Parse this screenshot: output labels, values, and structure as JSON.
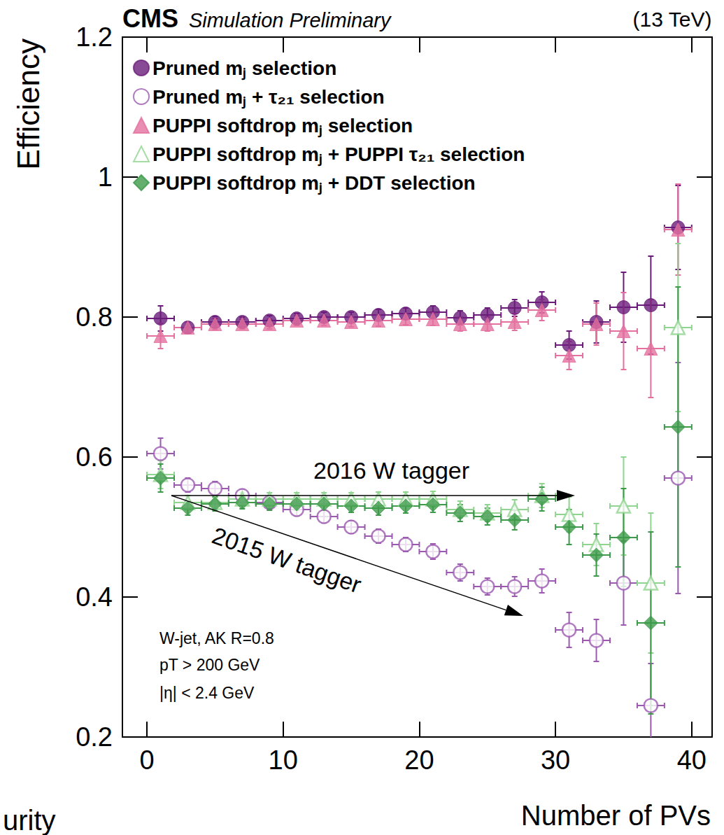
{
  "chart_data": {
    "type": "scatter",
    "title": "CMS",
    "subtitle": "Simulation Preliminary",
    "x_label": "Number of PVs",
    "y_label": "Efficiency",
    "annotations": [
      "(13 TeV)",
      "W-jet, AK R=0.8",
      "pT > 200 GeV",
      "|η| < 2.4 GeV",
      "2016 W tagger",
      "2015 W tagger",
      "urity"
    ],
    "legend": "upper left",
    "x": [
      1,
      3,
      5,
      7,
      9,
      11,
      13,
      15,
      17,
      19,
      21,
      23,
      25,
      27,
      29,
      31,
      33,
      35,
      37,
      39
    ],
    "x_err": [
      1,
      1,
      1,
      1,
      1,
      1,
      1,
      1,
      1,
      1,
      1,
      1,
      1,
      1,
      1,
      1,
      1,
      1,
      1,
      1
    ],
    "xlim": [
      -1.8,
      41.5
    ],
    "xticks": [
      0,
      10,
      20,
      30,
      40
    ],
    "ylim": [
      0.2,
      1.2
    ],
    "yticks": [
      0.2,
      0.4,
      0.6,
      0.8,
      1,
      1.2
    ],
    "series": [
      {
        "name": "Pruned mⱼ selection",
        "color": "#6a1b7a",
        "marker": "circle",
        "values": [
          0.798,
          0.785,
          0.793,
          0.793,
          0.795,
          0.798,
          0.8,
          0.8,
          0.803,
          0.805,
          0.807,
          0.799,
          0.803,
          0.813,
          0.821,
          0.76,
          0.793,
          0.814,
          0.817,
          0.928
        ],
        "errors": [
          0.018,
          0.008,
          0.008,
          0.007,
          0.007,
          0.007,
          0.007,
          0.007,
          0.008,
          0.008,
          0.009,
          0.01,
          0.01,
          0.012,
          0.015,
          0.02,
          0.03,
          0.05,
          0.07,
          0.06
        ]
      },
      {
        "name": "Pruned mⱼ + τ₂₁ selection",
        "color": "#9b59b0",
        "marker": "circle-open",
        "values": [
          0.605,
          0.56,
          0.555,
          0.545,
          0.535,
          0.525,
          0.515,
          0.5,
          0.487,
          0.475,
          0.465,
          0.435,
          0.415,
          0.415,
          0.423,
          0.353,
          0.338,
          0.42,
          0.245,
          0.57
        ],
        "errors": [
          0.022,
          0.01,
          0.01,
          0.009,
          0.009,
          0.009,
          0.009,
          0.009,
          0.01,
          0.01,
          0.011,
          0.012,
          0.012,
          0.014,
          0.017,
          0.025,
          0.03,
          0.06,
          0.06,
          0.165
        ]
      },
      {
        "name": "PUPPI softdrop mⱼ selection",
        "color": "#e3709f",
        "marker": "triangle",
        "values": [
          0.773,
          0.785,
          0.79,
          0.79,
          0.79,
          0.795,
          0.795,
          0.793,
          0.795,
          0.797,
          0.797,
          0.79,
          0.79,
          0.793,
          0.81,
          0.745,
          0.79,
          0.78,
          0.755,
          0.925
        ],
        "errors": [
          0.018,
          0.008,
          0.008,
          0.007,
          0.007,
          0.007,
          0.007,
          0.007,
          0.008,
          0.008,
          0.009,
          0.01,
          0.01,
          0.012,
          0.015,
          0.02,
          0.03,
          0.055,
          0.07,
          0.065
        ]
      },
      {
        "name": "PUPPI softdrop mⱼ + PUPPI τ₂₁ selection",
        "color": "#8fd48f",
        "marker": "triangle-open",
        "values": [
          0.575,
          0.535,
          0.535,
          0.54,
          0.54,
          0.54,
          0.54,
          0.54,
          0.54,
          0.54,
          0.54,
          0.525,
          0.52,
          0.525,
          0.545,
          0.518,
          0.475,
          0.53,
          0.42,
          0.785
        ],
        "errors": [
          0.02,
          0.01,
          0.01,
          0.009,
          0.009,
          0.009,
          0.009,
          0.009,
          0.01,
          0.01,
          0.011,
          0.012,
          0.012,
          0.014,
          0.017,
          0.025,
          0.03,
          0.07,
          0.1,
          0.12
        ]
      },
      {
        "name": "PUPPI softdrop mⱼ + DDT selection",
        "color": "#3d9a4a",
        "marker": "diamond",
        "values": [
          0.57,
          0.527,
          0.533,
          0.535,
          0.533,
          0.533,
          0.533,
          0.53,
          0.527,
          0.53,
          0.532,
          0.52,
          0.515,
          0.51,
          0.54,
          0.5,
          0.46,
          0.485,
          0.363,
          0.643
        ],
        "errors": [
          0.02,
          0.01,
          0.01,
          0.009,
          0.009,
          0.009,
          0.009,
          0.009,
          0.01,
          0.01,
          0.011,
          0.012,
          0.012,
          0.014,
          0.017,
          0.025,
          0.03,
          0.07,
          0.13,
          0.2
        ]
      }
    ]
  }
}
